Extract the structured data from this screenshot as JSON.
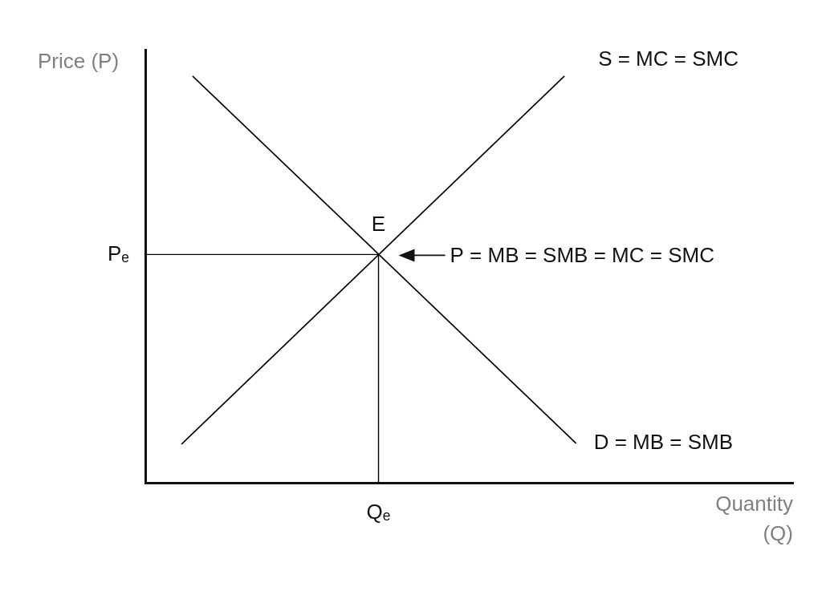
{
  "chart_data": {
    "type": "line",
    "x_label": "Quantity (Q)",
    "y_label": "Price (P)",
    "xlim": [
      0,
      10
    ],
    "ylim": [
      0,
      10
    ],
    "xticks": [
      {
        "value": 3.6,
        "label": "Qₑ"
      }
    ],
    "yticks": [
      {
        "value": 5.27,
        "label": "Pₑ"
      }
    ],
    "grid": false,
    "series": [
      {
        "name": "S = MC = SMC",
        "color": "#000000",
        "x": [
          0.56,
          6.47
        ],
        "values": [
          0.89,
          9.39
        ]
      },
      {
        "name": "D = MB = SMB",
        "color": "#000000",
        "x": [
          0.73,
          6.65
        ],
        "values": [
          9.39,
          0.91
        ]
      }
    ],
    "equilibrium": {
      "label": "E",
      "x": 3.6,
      "y": 5.27
    },
    "annotations": [
      {
        "text": "P = MB = SMB = MC = SMC",
        "x": 3.6,
        "y": 5.27
      }
    ]
  }
}
